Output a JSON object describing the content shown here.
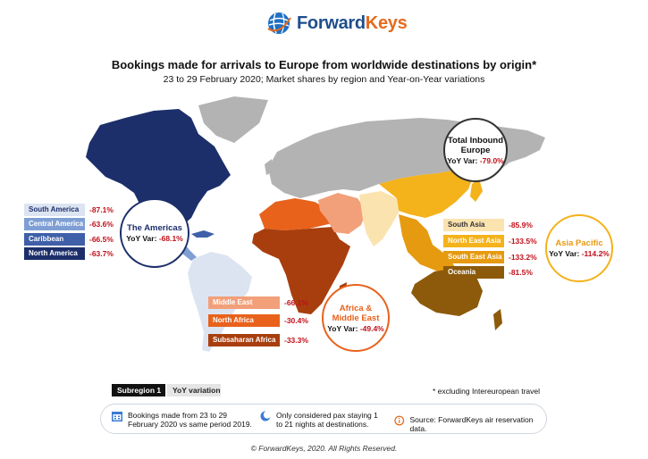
{
  "header": {
    "logo_text_forward": "Forward",
    "logo_text_keys": "Keys",
    "title": "Bookings made for arrivals to Europe from worldwide destinations by origin*",
    "subtitle": "23 to 29 February 2020; Market shares by region and Year-on-Year variations"
  },
  "total": {
    "label_line1": "Total Inbound",
    "label_line2": "Europe",
    "var_label": "YoY Var:",
    "var_value": "-79.0%"
  },
  "americas": {
    "bubble_title": "The Americas",
    "var_label": "YoY Var:",
    "var_value": "-68.1%",
    "rows": [
      {
        "label": "South America",
        "value": "-87.1%",
        "color": "#dce4f2"
      },
      {
        "label": "Central America",
        "value": "-63.6%",
        "color": "#7f9fd4"
      },
      {
        "label": "Caribbean",
        "value": "-66.5%",
        "color": "#3f5fa8"
      },
      {
        "label": "North America",
        "value": "-63.7%",
        "color": "#1c2f6b"
      }
    ]
  },
  "africa": {
    "bubble_title_1": "Africa &",
    "bubble_title_2": "Middle East",
    "var_label": "YoY Var:",
    "var_value": "-49.4%",
    "rows": [
      {
        "label": "Middle East",
        "value": "-66.1%",
        "color": "#f2a07a"
      },
      {
        "label": "North Africa",
        "value": "-30.4%",
        "color": "#e8621c"
      },
      {
        "label": "Subsaharan Africa",
        "value": "-33.3%",
        "color": "#a83e0e"
      }
    ]
  },
  "asia": {
    "bubble_title": "Asia Pacific",
    "var_label": "YoY Var:",
    "var_value": "-114.2%",
    "rows": [
      {
        "label": "South Asia",
        "value": "-85.9%",
        "color": "#fbe3b0"
      },
      {
        "label": "North East Asia",
        "value": "-133.5%",
        "color": "#f4b21b"
      },
      {
        "label": "South East Asia",
        "value": "-133.2%",
        "color": "#e69a10"
      },
      {
        "label": "Oceania",
        "value": "-81.5%",
        "color": "#8c5a0a"
      }
    ]
  },
  "legend": {
    "subregion": "Subregion 1",
    "variation": "YoY variation"
  },
  "footnote": "* excluding Intereuropean travel",
  "info": {
    "bookings": "Bookings made from 23 to 29 February 2020 vs same period 2019.",
    "bookings_l1": "Bookings made from 23 to 29",
    "bookings_l2": "February 2020 vs same period 2019.",
    "pax_l1": "Only considered pax staying 1",
    "pax_l2": "to 21 nights at destinations.",
    "source": "Source: ForwardKeys air reservation data."
  },
  "copyright": "© ForwardKeys, 2020. All Rights Reserved.",
  "colors": {
    "accent": "#c0101a",
    "europe": "#b3b3b3",
    "navy": "#1c2f6b"
  }
}
